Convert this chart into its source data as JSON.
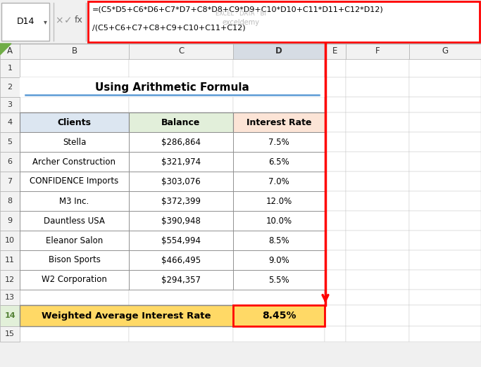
{
  "formula_bar_cell": "D14",
  "formula_line1": "=(C5*D5+C6*D6+C7*D7+C8*D8+C9*D9+C10*D10+C11*D11+C12*D12)",
  "formula_line2": "/(C5+C6+C7+C8+C9+C10+C11+C12)",
  "title": "Using Arithmetic Formula",
  "headers": [
    "Clients",
    "Balance",
    "Interest Rate"
  ],
  "rows": [
    [
      "Stella",
      "$286,864",
      "7.5%"
    ],
    [
      "Archer Construction",
      "$321,974",
      "6.5%"
    ],
    [
      "CONFIDENCE Imports",
      "$303,076",
      "7.0%"
    ],
    [
      "M3 Inc.",
      "$372,399",
      "12.0%"
    ],
    [
      "Dauntless USA",
      "$390,948",
      "10.0%"
    ],
    [
      "Eleanor Salon",
      "$554,994",
      "8.5%"
    ],
    [
      "Bison Sports",
      "$466,495",
      "9.0%"
    ],
    [
      "W2 Corporation",
      "$294,357",
      "5.5%"
    ]
  ],
  "footer_label": "Weighted Average Interest Rate",
  "footer_value": "8.45%",
  "header_bg_clients": "#dce6f1",
  "header_bg_balance": "#e2efda",
  "header_bg_interest": "#fce4d6",
  "footer_bg": "#ffd966",
  "formula_box_color": "#ff0000",
  "red_arrow_color": "#ff0000",
  "col_header_bg": "#f2f2f2",
  "row_header_bg": "#f2f2f2",
  "row14_header_bg": "#e2f0d9",
  "selected_col_bg": "#d6dce4",
  "white": "#ffffff",
  "grid_color": "#c0c0c0",
  "dark_border": "#555555",
  "title_fontsize": 11,
  "body_fontsize": 8.5,
  "formula_fontsize": 8,
  "watermark1": "exceldemy",
  "watermark2": "EXCEL · DATA · BI"
}
